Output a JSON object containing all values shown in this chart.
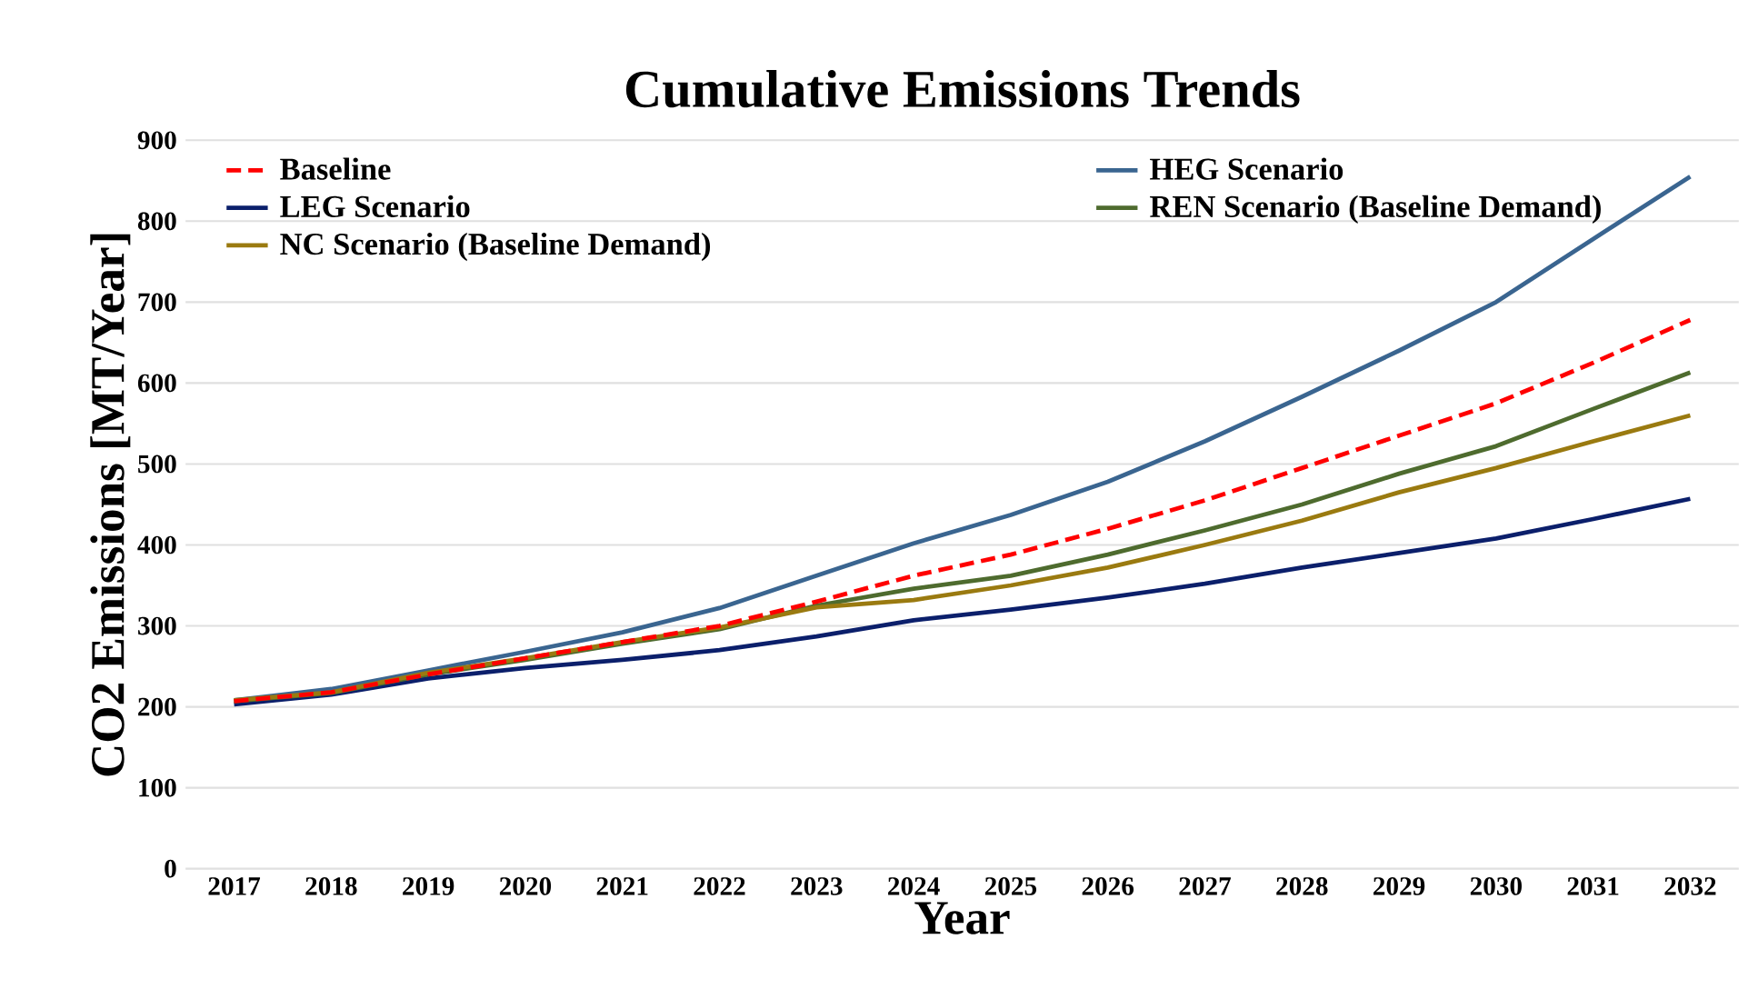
{
  "chart_data": {
    "type": "line",
    "title": "Cumulative Emissions Trends",
    "xlabel": "Year",
    "ylabel": "CO2 Emissions [MT/Year]",
    "categories": [
      "2017",
      "2018",
      "2019",
      "2020",
      "2021",
      "2022",
      "2023",
      "2024",
      "2025",
      "2026",
      "2027",
      "2028",
      "2029",
      "2030",
      "2031",
      "2032"
    ],
    "series": [
      {
        "name": "Baseline",
        "color": "#ff0000",
        "line_style": "dashed",
        "values": [
          207,
          218,
          240,
          260,
          280,
          300,
          330,
          362,
          388,
          420,
          455,
          495,
          535,
          575,
          625,
          678
        ]
      },
      {
        "name": "HEG Scenario",
        "color": "#3a6590",
        "values": [
          208,
          222,
          245,
          268,
          292,
          322,
          362,
          402,
          437,
          478,
          528,
          583,
          640,
          700,
          778,
          855
        ]
      },
      {
        "name": "LEG Scenario",
        "color": "#0b1f6b",
        "values": [
          203,
          215,
          235,
          248,
          258,
          270,
          287,
          307,
          320,
          335,
          352,
          372,
          390,
          408,
          432,
          457
        ]
      },
      {
        "name": "REN Scenario (Baseline Demand)",
        "color": "#4e6b2e",
        "values": [
          207,
          217,
          240,
          258,
          278,
          296,
          325,
          346,
          362,
          388,
          418,
          450,
          488,
          522,
          568,
          613
        ]
      },
      {
        "name": "NC Scenario (Baseline Demand)",
        "color": "#9a7a10",
        "values": [
          208,
          218,
          242,
          260,
          280,
          298,
          323,
          332,
          350,
          372,
          400,
          430,
          465,
          495,
          528,
          560
        ]
      }
    ],
    "ylim": [
      0,
      900
    ],
    "yticks": [
      0,
      100,
      200,
      300,
      400,
      500,
      600,
      700,
      800,
      900
    ],
    "grid": "y",
    "legend": "top left",
    "line_style": "solid",
    "marker": "none"
  }
}
